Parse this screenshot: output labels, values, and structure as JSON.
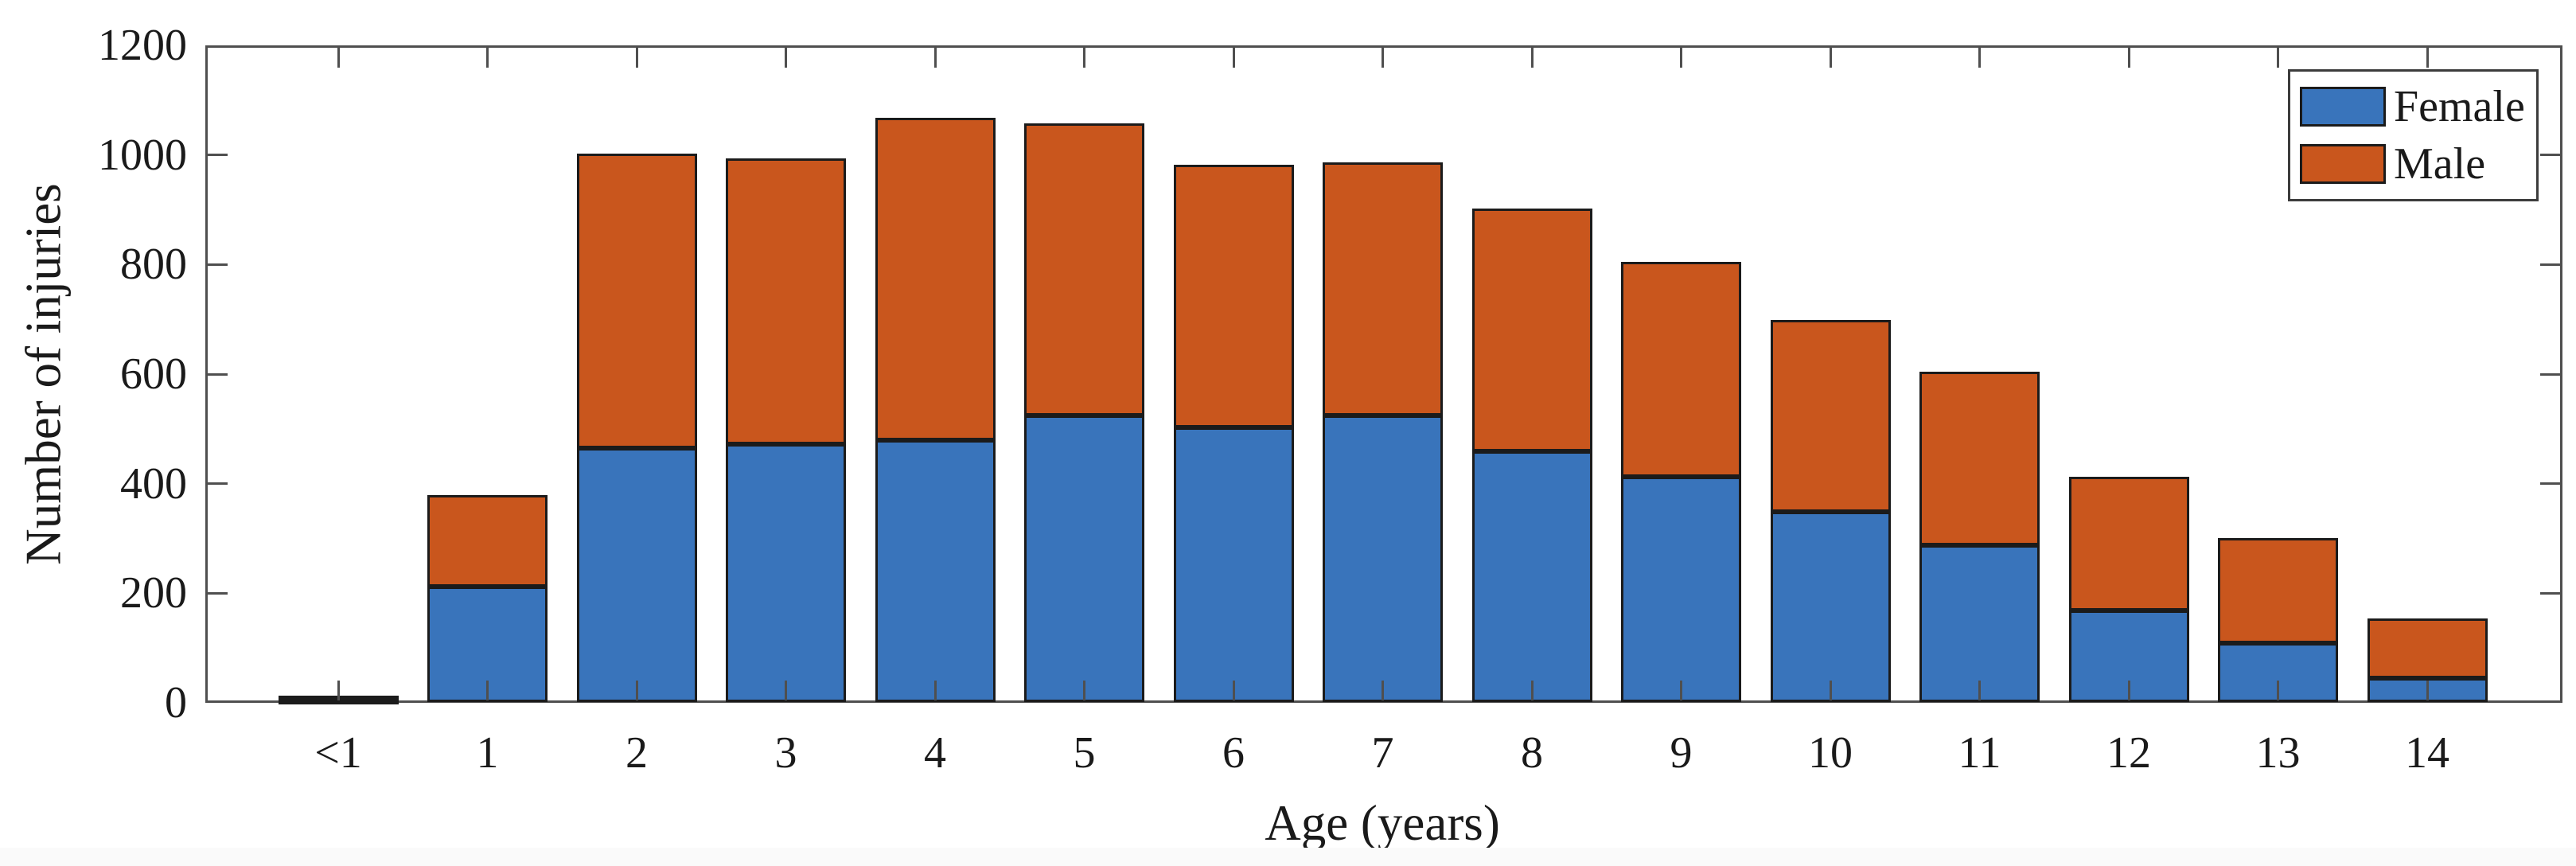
{
  "chart_data": {
    "type": "bar",
    "stacked": true,
    "title": "",
    "xlabel": "Age (years)",
    "ylabel": "Number of injuries",
    "categories": [
      "<1",
      "1",
      "2",
      "3",
      "4",
      "5",
      "6",
      "7",
      "8",
      "9",
      "10",
      "11",
      "12",
      "13",
      "14"
    ],
    "series": [
      {
        "name": "Female",
        "color": "#3974BB",
        "values": [
          5,
          210,
          464,
          471,
          478,
          523,
          501,
          523,
          458,
          411,
          347,
          286,
          167,
          108,
          43
        ]
      },
      {
        "name": "Male",
        "color": "#C9561D",
        "values": [
          7,
          167,
          537,
          521,
          588,
          533,
          480,
          462,
          443,
          392,
          351,
          317,
          244,
          191,
          109
        ]
      }
    ],
    "ylim": [
      0,
      1200
    ],
    "yticks": [
      0,
      200,
      400,
      600,
      800,
      1000,
      1200
    ],
    "grid": false,
    "legend_position": "top-right",
    "bar_edge_color": "#1b1b1b",
    "axis_color": "#4f4f4f",
    "text_color": "#1a1a1a"
  }
}
